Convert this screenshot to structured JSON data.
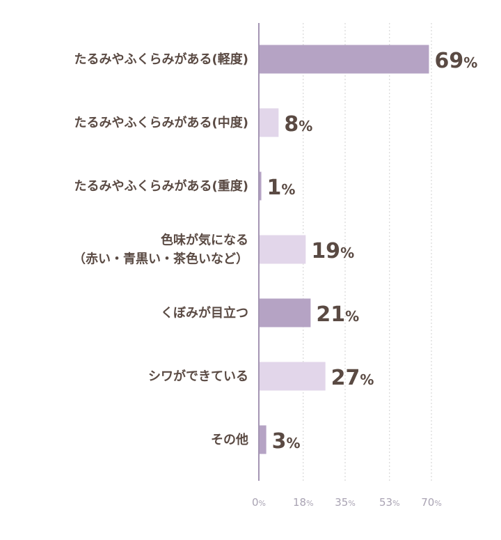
{
  "chart_data": {
    "type": "bar",
    "orientation": "horizontal",
    "categories": [
      [
        "たるみやふくらみがある(軽度)"
      ],
      [
        "たるみやふくらみがある(中度)"
      ],
      [
        "たるみやふくらみがある(重度)"
      ],
      [
        "色味が気になる",
        "（赤い・青黒い・茶色いなど）"
      ],
      [
        "くぼみが目立つ"
      ],
      [
        "シワができている"
      ],
      [
        "その他"
      ]
    ],
    "values": [
      69,
      8,
      1,
      19,
      21,
      27,
      3
    ],
    "value_unit": "%",
    "xlim": [
      0,
      70
    ],
    "ticks": [
      0,
      18,
      35,
      53,
      70
    ],
    "tick_unit": "%",
    "grid": "vertical-dotted",
    "colors": {
      "bar_dark": "#b5a3c4",
      "bar_light": "#e2d6ea",
      "axis": "#a495b3",
      "grid": "#cfcfcf",
      "text": "#5a4a43",
      "tick_text": "#a9a3b3"
    },
    "bar_colors": [
      "dark",
      "light",
      "dark",
      "light",
      "dark",
      "light",
      "dark"
    ]
  }
}
